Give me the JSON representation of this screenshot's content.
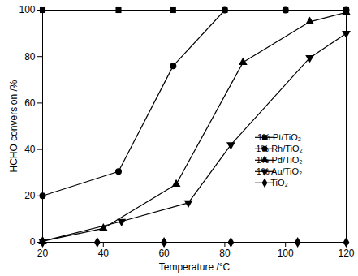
{
  "chart_data": {
    "type": "line",
    "x_label": "Temperature /°C",
    "y_label": "HCHO conversion /%",
    "xlim": [
      20,
      120
    ],
    "xticks": [
      20,
      40,
      60,
      80,
      100,
      120
    ],
    "ylim": [
      0,
      100
    ],
    "yticks": [
      0,
      20,
      40,
      60,
      80,
      100
    ],
    "legend": "right",
    "series": [
      {
        "name": "1% Pt/TiO₂",
        "color": "#000000",
        "marker": "square",
        "line_style": "solid",
        "x": [
          20,
          45,
          63,
          80,
          100,
          120
        ],
        "values": [
          100,
          100,
          100,
          100,
          100,
          100
        ]
      },
      {
        "name": "1% Rh/TiO₂",
        "color": "#000000",
        "marker": "circle",
        "line_style": "solid",
        "x": [
          20,
          45,
          63,
          80,
          100,
          120
        ],
        "values": [
          20,
          30.5,
          76,
          100,
          100,
          100
        ]
      },
      {
        "name": "1% Pd/TiO₂",
        "color": "#000000",
        "marker": "triangle",
        "line_style": "solid",
        "x": [
          20,
          40,
          64,
          86,
          108,
          120
        ],
        "values": [
          0.5,
          6,
          25,
          77.5,
          95,
          99
        ]
      },
      {
        "name": "1% Au/TiO₂",
        "color": "#000000",
        "marker": "triangle-down",
        "line_style": "solid",
        "x": [
          20,
          46,
          68,
          82,
          108,
          120
        ],
        "values": [
          0.5,
          9,
          17,
          42,
          79.5,
          90
        ]
      },
      {
        "name": "TiO₂",
        "color": "#000000",
        "marker": "diamond",
        "line_style": "solid",
        "x": [
          20,
          38,
          60,
          82,
          104,
          120
        ],
        "values": [
          0,
          0,
          0,
          0,
          0,
          0
        ]
      }
    ]
  }
}
